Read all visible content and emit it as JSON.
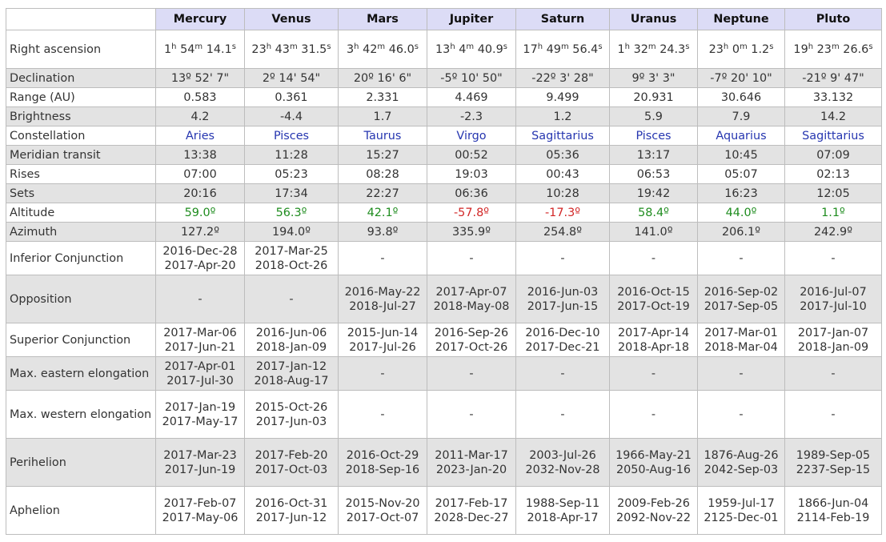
{
  "columns": [
    "Mercury",
    "Venus",
    "Mars",
    "Jupiter",
    "Saturn",
    "Uranus",
    "Neptune",
    "Pluto"
  ],
  "ra": {
    "label": "Right ascension",
    "values": [
      {
        "h": "1",
        "m": "54",
        "s": "14.1"
      },
      {
        "h": "23",
        "m": "43",
        "s": "31.5"
      },
      {
        "h": "3",
        "m": "42",
        "s": "46.0"
      },
      {
        "h": "13",
        "m": "4",
        "s": "40.9"
      },
      {
        "h": "17",
        "m": "49",
        "s": "56.4"
      },
      {
        "h": "1",
        "m": "32",
        "s": "24.3"
      },
      {
        "h": "23",
        "m": "0",
        "s": "1.2"
      },
      {
        "h": "19",
        "m": "23",
        "s": "26.6"
      }
    ]
  },
  "rows": [
    {
      "label": "Declination",
      "height": 24,
      "cells": [
        [
          "13º 52' 7\""
        ],
        [
          "2º 14' 54\""
        ],
        [
          "20º 16' 6\""
        ],
        [
          "-5º 10' 50\""
        ],
        [
          "-22º 3' 28\""
        ],
        [
          "9º 3' 3\""
        ],
        [
          "-7º 20' 10\""
        ],
        [
          "-21º 9' 47\""
        ]
      ]
    },
    {
      "label": "Range (AU)",
      "height": 24,
      "cells": [
        [
          "0.583"
        ],
        [
          "0.361"
        ],
        [
          "2.331"
        ],
        [
          "4.469"
        ],
        [
          "9.499"
        ],
        [
          "20.931"
        ],
        [
          "30.646"
        ],
        [
          "33.132"
        ]
      ]
    },
    {
      "label": "Brightness",
      "height": 24,
      "cells": [
        [
          "4.2"
        ],
        [
          "-4.4"
        ],
        [
          "1.7"
        ],
        [
          "-2.3"
        ],
        [
          "1.2"
        ],
        [
          "5.9"
        ],
        [
          "7.9"
        ],
        [
          "14.2"
        ]
      ]
    },
    {
      "label": "Constellation",
      "height": 24,
      "style": "constellation",
      "cells": [
        [
          "Aries"
        ],
        [
          "Pisces"
        ],
        [
          "Taurus"
        ],
        [
          "Virgo"
        ],
        [
          "Sagittarius"
        ],
        [
          "Pisces"
        ],
        [
          "Aquarius"
        ],
        [
          "Sagittarius"
        ]
      ]
    },
    {
      "label": "Meridian transit",
      "height": 24,
      "cells": [
        [
          "13:38"
        ],
        [
          "11:28"
        ],
        [
          "15:27"
        ],
        [
          "00:52"
        ],
        [
          "05:36"
        ],
        [
          "13:17"
        ],
        [
          "10:45"
        ],
        [
          "07:09"
        ]
      ]
    },
    {
      "label": "Rises",
      "height": 24,
      "cells": [
        [
          "07:00"
        ],
        [
          "05:23"
        ],
        [
          "08:28"
        ],
        [
          "19:03"
        ],
        [
          "00:43"
        ],
        [
          "06:53"
        ],
        [
          "05:07"
        ],
        [
          "02:13"
        ]
      ]
    },
    {
      "label": "Sets",
      "height": 24,
      "cells": [
        [
          "20:16"
        ],
        [
          "17:34"
        ],
        [
          "22:27"
        ],
        [
          "06:36"
        ],
        [
          "10:28"
        ],
        [
          "19:42"
        ],
        [
          "16:23"
        ],
        [
          "12:05"
        ]
      ]
    },
    {
      "label": "Altitude",
      "height": 24,
      "style": "altitude",
      "cells": [
        [
          "59.0º"
        ],
        [
          "56.3º"
        ],
        [
          "42.1º"
        ],
        [
          "-57.8º"
        ],
        [
          "-17.3º"
        ],
        [
          "58.4º"
        ],
        [
          "44.0º"
        ],
        [
          "1.1º"
        ]
      ]
    },
    {
      "label": "Azimuth",
      "height": 24,
      "cells": [
        [
          "127.2º"
        ],
        [
          "194.0º"
        ],
        [
          "93.8º"
        ],
        [
          "335.9º"
        ],
        [
          "254.8º"
        ],
        [
          "141.0º"
        ],
        [
          "206.1º"
        ],
        [
          "242.9º"
        ]
      ]
    },
    {
      "label": "Inferior Conjunction",
      "height": 42,
      "cells": [
        [
          "2016-Dec-28",
          "2017-Apr-20"
        ],
        [
          "2017-Mar-25",
          "2018-Oct-26"
        ],
        [
          "-"
        ],
        [
          "-"
        ],
        [
          "-"
        ],
        [
          "-"
        ],
        [
          "-"
        ],
        [
          "-"
        ]
      ]
    },
    {
      "label": "Opposition",
      "height": 60,
      "cells": [
        [
          "-"
        ],
        [
          "-"
        ],
        [
          "2016-May-22",
          "2018-Jul-27"
        ],
        [
          "2017-Apr-07",
          "2018-May-08"
        ],
        [
          "2016-Jun-03",
          "2017-Jun-15"
        ],
        [
          "2016-Oct-15",
          "2017-Oct-19"
        ],
        [
          "2016-Sep-02",
          "2017-Sep-05"
        ],
        [
          "2016-Jul-07",
          "2017-Jul-10"
        ]
      ]
    },
    {
      "label": "Superior Conjunction",
      "height": 42,
      "cells": [
        [
          "2017-Mar-06",
          "2017-Jun-21"
        ],
        [
          "2016-Jun-06",
          "2018-Jan-09"
        ],
        [
          "2015-Jun-14",
          "2017-Jul-26"
        ],
        [
          "2016-Sep-26",
          "2017-Oct-26"
        ],
        [
          "2016-Dec-10",
          "2017-Dec-21"
        ],
        [
          "2017-Apr-14",
          "2018-Apr-18"
        ],
        [
          "2017-Mar-01",
          "2018-Mar-04"
        ],
        [
          "2017-Jan-07",
          "2018-Jan-09"
        ]
      ]
    },
    {
      "label": "Max. eastern elongation",
      "height": 42,
      "cells": [
        [
          "2017-Apr-01",
          "2017-Jul-30"
        ],
        [
          "2017-Jan-12",
          "2018-Aug-17"
        ],
        [
          "-"
        ],
        [
          "-"
        ],
        [
          "-"
        ],
        [
          "-"
        ],
        [
          "-"
        ],
        [
          "-"
        ]
      ]
    },
    {
      "label": "Max. western elongation",
      "height": 60,
      "cells": [
        [
          "2017-Jan-19",
          "2017-May-17"
        ],
        [
          "2015-Oct-26",
          "2017-Jun-03"
        ],
        [
          "-"
        ],
        [
          "-"
        ],
        [
          "-"
        ],
        [
          "-"
        ],
        [
          "-"
        ],
        [
          "-"
        ]
      ]
    },
    {
      "label": "Perihelion",
      "height": 60,
      "cells": [
        [
          "2017-Mar-23",
          "2017-Jun-19"
        ],
        [
          "2017-Feb-20",
          "2017-Oct-03"
        ],
        [
          "2016-Oct-29",
          "2018-Sep-16"
        ],
        [
          "2011-Mar-17",
          "2023-Jan-20"
        ],
        [
          "2003-Jul-26",
          "2032-Nov-28"
        ],
        [
          "1966-May-21",
          "2050-Aug-16"
        ],
        [
          "1876-Aug-26",
          "2042-Sep-03"
        ],
        [
          "1989-Sep-05",
          "2237-Sep-15"
        ]
      ]
    },
    {
      "label": "Aphelion",
      "height": 60,
      "cells": [
        [
          "2017-Feb-07",
          "2017-May-06"
        ],
        [
          "2016-Oct-31",
          "2017-Jun-12"
        ],
        [
          "2015-Nov-20",
          "2017-Oct-07"
        ],
        [
          "2017-Feb-17",
          "2028-Dec-27"
        ],
        [
          "1988-Sep-11",
          "2018-Apr-17"
        ],
        [
          "2009-Feb-26",
          "2092-Nov-22"
        ],
        [
          "1959-Jul-17",
          "2125-Dec-01"
        ],
        [
          "1866-Jun-04",
          "2114-Feb-19"
        ]
      ]
    }
  ],
  "colors": {
    "header_bg": "#dcdcf6",
    "stripe": "#e3e3e3",
    "constellation": "#2636b0",
    "positive_altitude": "#1e8c1e",
    "negative_altitude": "#d22626"
  }
}
